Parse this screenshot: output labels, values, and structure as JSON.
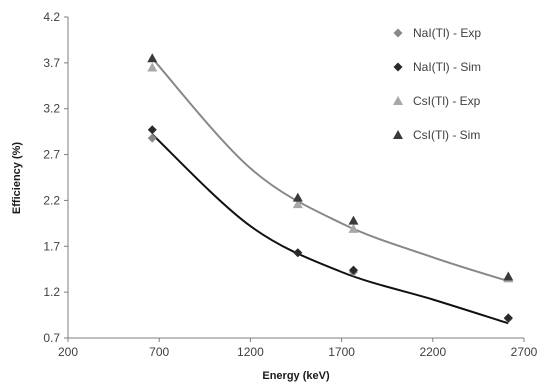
{
  "chart_data": {
    "type": "scatter",
    "title": "",
    "xlabel": "Energy (keV)",
    "ylabel": "Efficiency (%)",
    "xlim": [
      200,
      2700
    ],
    "ylim": [
      0.7,
      4.2
    ],
    "xticks": [
      "200",
      "700",
      "1200",
      "1700",
      "2200",
      "2700"
    ],
    "yticks": [
      "0.7",
      "1.2",
      "1.7",
      "2.2",
      "2.7",
      "3.2",
      "3.7",
      "4.2"
    ],
    "grid": false,
    "legend_position": "top-right",
    "series": [
      {
        "name": "NaI(Tl) - Exp",
        "marker": "diamond",
        "color": "#888888",
        "x": [
          662,
          1460,
          1765,
          2614
        ],
        "y": [
          2.88,
          1.63,
          1.42,
          0.91
        ]
      },
      {
        "name": "NaI(Tl) - Sim",
        "marker": "diamond",
        "color": "#2a2a2a",
        "x": [
          662,
          1460,
          1765,
          2614
        ],
        "y": [
          2.97,
          1.63,
          1.44,
          0.92
        ]
      },
      {
        "name": "CsI(Tl) - Exp",
        "marker": "triangle",
        "color": "#a8a8a8",
        "x": [
          662,
          1460,
          1765,
          2614
        ],
        "y": [
          3.65,
          2.16,
          1.89,
          1.35
        ]
      },
      {
        "name": "CsI(Tl) - Sim",
        "marker": "triangle",
        "color": "#3a3a3a",
        "x": [
          662,
          1460,
          1765,
          2614
        ],
        "y": [
          3.75,
          2.23,
          1.98,
          1.37
        ]
      }
    ],
    "trendlines": [
      {
        "color": "#111111",
        "points": [
          [
            662,
            2.92
          ],
          [
            1200,
            1.92
          ],
          [
            1700,
            1.42
          ],
          [
            2200,
            1.12
          ],
          [
            2614,
            0.86
          ]
        ]
      },
      {
        "color": "#888888",
        "points": [
          [
            662,
            3.75
          ],
          [
            1200,
            2.55
          ],
          [
            1700,
            1.95
          ],
          [
            2200,
            1.58
          ],
          [
            2614,
            1.32
          ]
        ]
      }
    ]
  }
}
